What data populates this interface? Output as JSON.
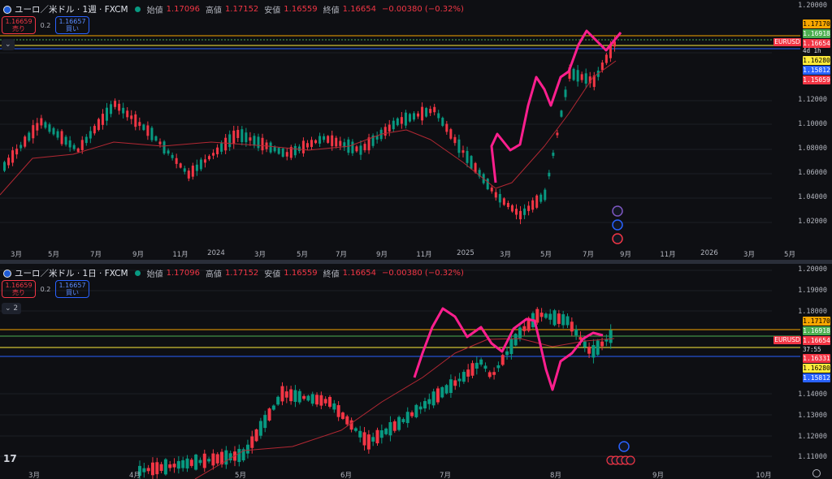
{
  "weekly": {
    "title": "ユーロ／米ドル · 1週 · FXCM",
    "ohlc": {
      "open_label": "始値",
      "open": "1.17096",
      "high_label": "高値",
      "high": "1.17152",
      "low_label": "安値",
      "low": "1.16559",
      "close_label": "終値",
      "close": "1.16654",
      "change": "−0.00380 (−0.32%)"
    },
    "sell": {
      "price": "1.16659",
      "label": "売り"
    },
    "buy": {
      "price": "1.16657",
      "label": "買い"
    },
    "spread": "0.2",
    "collapse_label": "⌄",
    "y_ticks": [
      "1.20000",
      "1.12000",
      "1.10000",
      "1.08000",
      "1.06000",
      "1.04000",
      "1.02000"
    ],
    "price_tags": [
      {
        "text": "1.17170",
        "bg": "#f7a600",
        "fg": "#000000"
      },
      {
        "text": "1.16918",
        "bg": "#4caf50",
        "fg": "#ffffff"
      },
      {
        "text": "1.16654",
        "bg": "#f23645",
        "fg": "#ffffff"
      },
      {
        "text": "1.16280",
        "bg": "#ffeb3b",
        "fg": "#000000"
      },
      {
        "text": "1.15812",
        "bg": "#2962ff",
        "fg": "#ffffff"
      },
      {
        "text": "1.15059",
        "bg": "#f23645",
        "fg": "#ffffff"
      }
    ],
    "symbol": "EURUSD",
    "countdown": "4d 1h",
    "x_ticks": [
      "3月",
      "5月",
      "7月",
      "9月",
      "11月",
      "2024",
      "3月",
      "5月",
      "7月",
      "9月",
      "11月",
      "2025",
      "3月",
      "5月",
      "7月",
      "9月",
      "11月",
      "2026",
      "3月",
      "5月"
    ]
  },
  "daily": {
    "title": "ユーロ／米ドル · 1日 · FXCM",
    "ohlc": {
      "open_label": "始値",
      "open": "1.17096",
      "high_label": "高値",
      "high": "1.17152",
      "low_label": "安値",
      "low": "1.16559",
      "close_label": "終値",
      "close": "1.16654",
      "change": "−0.00380 (−0.32%)"
    },
    "sell": {
      "price": "1.16659",
      "label": "売り"
    },
    "buy": {
      "price": "1.16657",
      "label": "買い"
    },
    "spread": "0.2",
    "collapse_label": "⌄ 2",
    "y_ticks": [
      "1.20000",
      "1.19000",
      "1.18000",
      "1.14000",
      "1.13000",
      "1.12000",
      "1.11000"
    ],
    "price_tags": [
      {
        "text": "1.17170",
        "bg": "#f7a600",
        "fg": "#000000"
      },
      {
        "text": "1.16918",
        "bg": "#4caf50",
        "fg": "#ffffff"
      },
      {
        "text": "1.16654",
        "bg": "#f23645",
        "fg": "#ffffff"
      },
      {
        "text": "1.16331",
        "bg": "#f23645",
        "fg": "#ffffff"
      },
      {
        "text": "1.16280",
        "bg": "#ffeb3b",
        "fg": "#000000"
      },
      {
        "text": "1.15812",
        "bg": "#2962ff",
        "fg": "#ffffff"
      }
    ],
    "symbol": "EURUSD",
    "countdown": "37:55",
    "x_ticks": [
      "3月",
      "4月",
      "5月",
      "6月",
      "7月",
      "8月",
      "9月",
      "10月"
    ]
  },
  "colors": {
    "up": "#089981",
    "down": "#f23645",
    "ma": "#b22833",
    "annotation": "#ff1f8e"
  }
}
